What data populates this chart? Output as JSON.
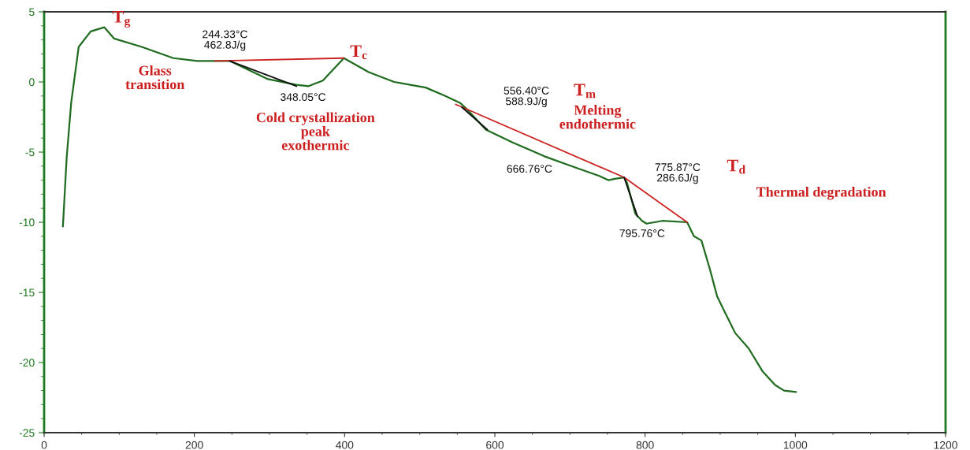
{
  "chart_data": {
    "type": "line",
    "xlim": [
      0,
      1200
    ],
    "xticks": [
      0,
      200,
      400,
      600,
      800,
      1000,
      1200
    ],
    "ylim": [
      -25,
      5
    ],
    "yticks": [
      -25,
      -20,
      -15,
      -10,
      -5,
      0,
      5
    ],
    "grid": false,
    "marker": "none",
    "line_style": "solid",
    "series": [
      {
        "color": "#1f6b1f",
        "x": [
          25,
          30,
          36,
          46,
          62,
          80,
          93,
          130,
          172,
          204,
          225,
          247,
          298,
          336,
          352,
          371,
          399,
          432,
          466,
          508,
          534,
          554,
          562,
          588,
          623,
          666,
          707,
          739,
          751,
          760,
          772,
          776,
          787,
          796,
          802,
          823,
          856,
          865,
          875,
          886,
          896,
          907,
          920,
          938,
          956,
          973,
          985,
          1001
        ],
        "values": [
          -10.3,
          -5.4,
          -1.5,
          2.5,
          3.6,
          3.9,
          3.1,
          2.5,
          1.7,
          1.5,
          1.5,
          1.5,
          0.2,
          -0.2,
          -0.3,
          0.1,
          1.7,
          0.7,
          0.0,
          -0.4,
          -1.0,
          -1.5,
          -1.9,
          -3.4,
          -4.3,
          -5.3,
          -6.1,
          -6.7,
          -7.0,
          -6.9,
          -6.8,
          -7.2,
          -9.4,
          -9.9,
          -10.1,
          -9.9,
          -10.0,
          -11.0,
          -11.3,
          -13.3,
          -15.3,
          -16.5,
          -17.9,
          -19.0,
          -20.6,
          -21.6,
          -22.0,
          -22.1
        ]
      },
      {
        "color": "#cc2222",
        "x": [
          227,
          399
        ],
        "values": [
          1.5,
          1.7
        ]
      },
      {
        "color": "#cc2222",
        "x": [
          548,
          772,
          856
        ],
        "values": [
          -1.6,
          -6.8,
          -10.0
        ]
      },
      {
        "color": "#111111",
        "x": [
          247,
          336
        ],
        "values": [
          1.5,
          -0.3
        ]
      },
      {
        "color": "#111111",
        "x": [
          556,
          590
        ],
        "values": [
          -1.8,
          -3.4
        ]
      },
      {
        "color": "#111111",
        "x": [
          772,
          790
        ],
        "values": [
          -6.8,
          -9.6
        ]
      }
    ],
    "annotations": [
      {
        "text": "T$_{g}$",
        "x": 80,
        "y": 3.9
      },
      "Glass\ntransition",
      {
        "text": "244.33°C\n462.8J/g",
        "x": 247,
        "y": 1.5
      },
      {
        "text": "348.05°C",
        "x": 352,
        "y": -0.3
      },
      {
        "text": "T$_{c}$",
        "x": 399,
        "y": 1.7
      },
      "Cold crystallization\npeak\nexothermic",
      "556.40°C\n588.9J/g",
      "T$_{m}$",
      "Melting\nendothermic",
      {
        "text": "666.76°C",
        "x": 666,
        "y": -5.3
      },
      {
        "text": "775.87°C\n286.6J/g",
        "x": 772,
        "y": -6.8
      },
      "T$_{d}$",
      "Thermal degradation",
      {
        "text": "795.76°C",
        "x": 796,
        "y": -9.9
      }
    ]
  }
}
